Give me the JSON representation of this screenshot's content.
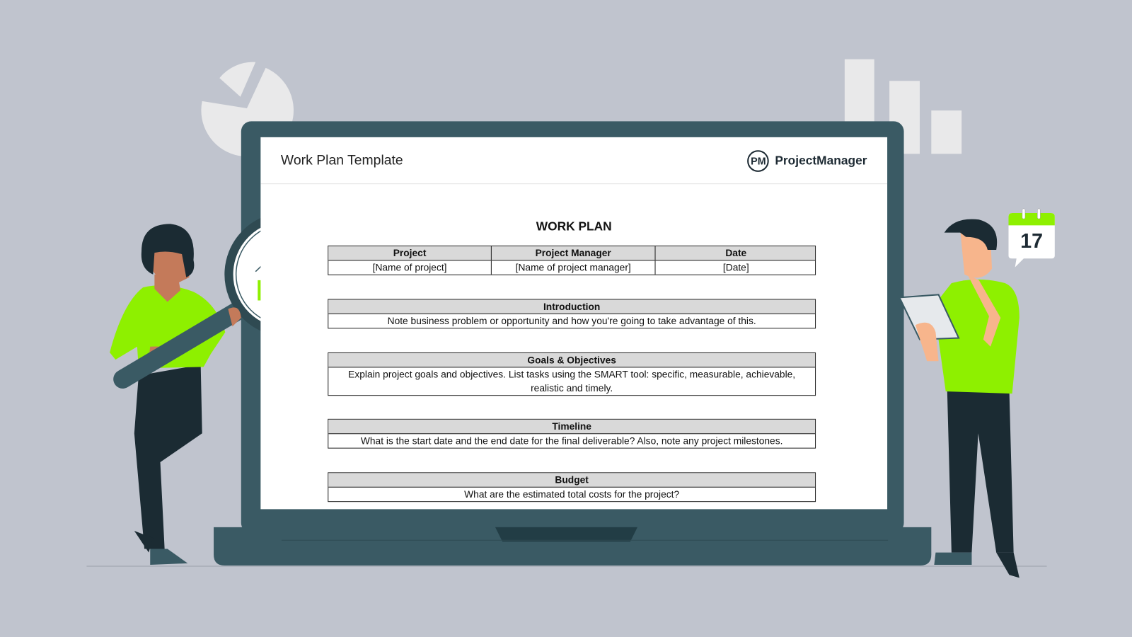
{
  "document": {
    "header_title": "Work Plan Template",
    "logo_mark": "PM",
    "logo_text": "ProjectManager",
    "title": "WORK PLAN",
    "info_table": {
      "headers": [
        "Project",
        "Project Manager",
        "Date"
      ],
      "values": [
        "[Name of project]",
        "[Name of project manager]",
        "[Date]"
      ]
    },
    "sections": [
      {
        "heading": "Introduction",
        "body": "Note business problem or opportunity and how you're going to take advantage of this."
      },
      {
        "heading": "Goals & Objectives",
        "body": "Explain project goals and objectives. List tasks using the SMART tool: specific, measurable, achievable, realistic and timely."
      },
      {
        "heading": "Timeline",
        "body": "What is the start date and the end date for the final deliverable? Also, note any project milestones."
      },
      {
        "heading": "Budget",
        "body": "What are the estimated total costs for the project?"
      }
    ]
  },
  "calendar": {
    "day": "17",
    "icon": "calendar-icon"
  },
  "colors": {
    "background": "#c0c4ce",
    "laptop": "#3a5a64",
    "accent_green": "#8ef000",
    "dark": "#1b2b33",
    "header_gray": "#d9d9d9"
  }
}
